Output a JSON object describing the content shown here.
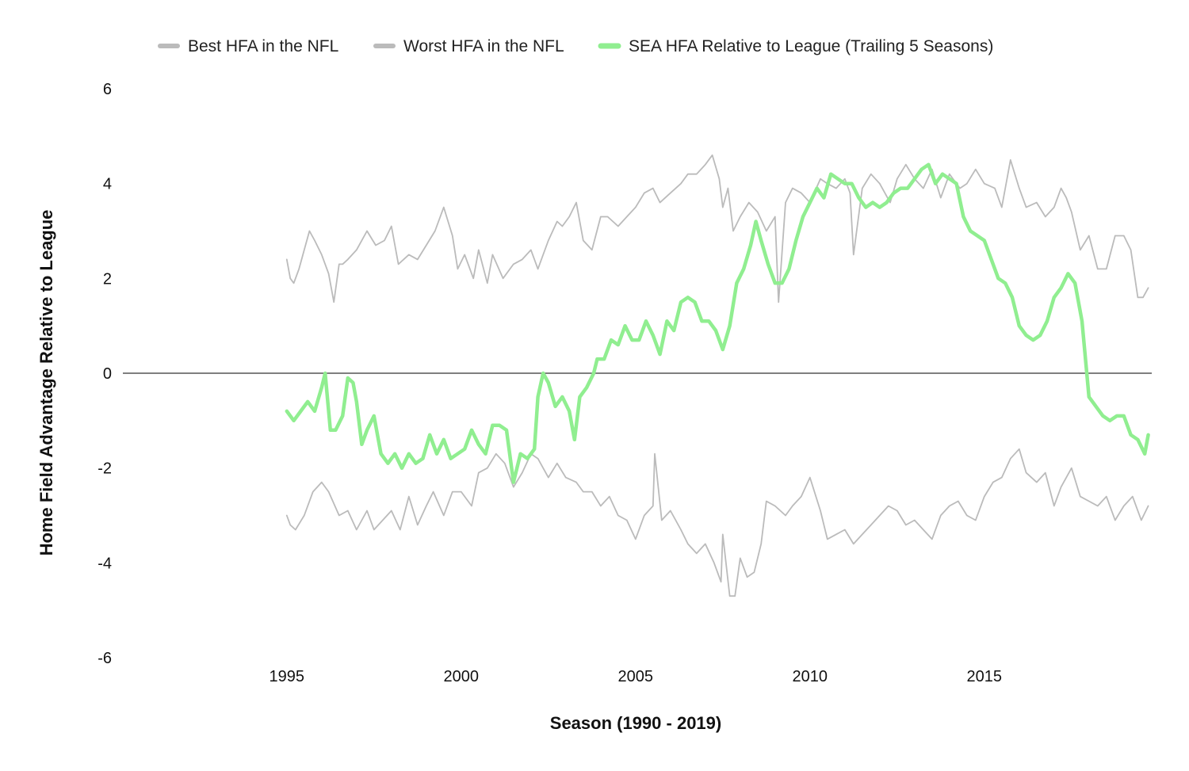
{
  "chart_data": {
    "type": "line",
    "title": "",
    "xlabel": "Season (1990 - 2019)",
    "ylabel": "Home Field Advantage Relative to League",
    "xlim": [
      1990.3,
      2019.8
    ],
    "ylim": [
      -6,
      6
    ],
    "x_ticks": [
      1995,
      2000,
      2005,
      2010,
      2015
    ],
    "y_ticks": [
      6,
      4,
      2,
      0,
      -2,
      -4,
      -6
    ],
    "grid": false,
    "zero_line": true,
    "legend_position": "top",
    "series": [
      {
        "name": "Best HFA in the NFL",
        "color": "#bbbbbb",
        "x": [
          1995.0,
          1995.1,
          1995.2,
          1995.35,
          1995.5,
          1995.65,
          1995.8,
          1996.0,
          1996.2,
          1996.35,
          1996.5,
          1996.6,
          1996.75,
          1997.0,
          1997.3,
          1997.55,
          1997.8,
          1998.0,
          1998.2,
          1998.5,
          1998.75,
          1999.0,
          1999.25,
          1999.5,
          1999.75,
          1999.9,
          2000.1,
          2000.35,
          2000.5,
          2000.75,
          2000.9,
          2001.2,
          2001.5,
          2001.75,
          2002.0,
          2002.2,
          2002.5,
          2002.75,
          2002.9,
          2003.1,
          2003.3,
          2003.5,
          2003.75,
          2004.0,
          2004.2,
          2004.5,
          2004.75,
          2005.0,
          2005.25,
          2005.5,
          2005.7,
          2006.0,
          2006.3,
          2006.5,
          2006.75,
          2007.0,
          2007.2,
          2007.4,
          2007.5,
          2007.65,
          2007.8,
          2008.0,
          2008.25,
          2008.5,
          2008.75,
          2009.0,
          2009.1,
          2009.3,
          2009.5,
          2009.75,
          2010.0,
          2010.3,
          2010.5,
          2010.75,
          2011.0,
          2011.15,
          2011.25,
          2011.5,
          2011.75,
          2012.0,
          2012.3,
          2012.5,
          2012.75,
          2013.0,
          2013.25,
          2013.5,
          2013.75,
          2014.0,
          2014.3,
          2014.5,
          2014.75,
          2015.0,
          2015.3,
          2015.5,
          2015.75,
          2016.0,
          2016.2,
          2016.5,
          2016.75,
          2017.0,
          2017.2,
          2017.35,
          2017.5,
          2017.75,
          2018.0,
          2018.25,
          2018.5,
          2018.75,
          2019.0,
          2019.2,
          2019.4,
          2019.55,
          2019.7
        ],
        "y": [
          2.4,
          2.0,
          1.9,
          2.2,
          2.6,
          3.0,
          2.8,
          2.5,
          2.1,
          1.5,
          2.3,
          2.3,
          2.4,
          2.6,
          3.0,
          2.7,
          2.8,
          3.1,
          2.3,
          2.5,
          2.4,
          2.7,
          3.0,
          3.5,
          2.9,
          2.2,
          2.5,
          2.0,
          2.6,
          1.9,
          2.5,
          2.0,
          2.3,
          2.4,
          2.6,
          2.2,
          2.8,
          3.2,
          3.1,
          3.3,
          3.6,
          2.8,
          2.6,
          3.3,
          3.3,
          3.1,
          3.3,
          3.5,
          3.8,
          3.9,
          3.6,
          3.8,
          4.0,
          4.2,
          4.2,
          4.4,
          4.6,
          4.1,
          3.5,
          3.9,
          3.0,
          3.3,
          3.6,
          3.4,
          3.0,
          3.3,
          1.5,
          3.6,
          3.9,
          3.8,
          3.6,
          4.1,
          4.0,
          3.9,
          4.1,
          3.8,
          2.5,
          3.9,
          4.2,
          4.0,
          3.6,
          4.1,
          4.4,
          4.1,
          3.9,
          4.3,
          3.7,
          4.2,
          3.9,
          4.0,
          4.3,
          4.0,
          3.9,
          3.5,
          4.5,
          3.9,
          3.5,
          3.6,
          3.3,
          3.5,
          3.9,
          3.7,
          3.4,
          2.6,
          2.9,
          2.2,
          2.2,
          2.9,
          2.9,
          2.6,
          1.6,
          1.6,
          1.8
        ]
      },
      {
        "name": "Worst HFA in the NFL",
        "color": "#bbbbbb",
        "x": [
          1995.0,
          1995.1,
          1995.25,
          1995.5,
          1995.75,
          1996.0,
          1996.2,
          1996.5,
          1996.75,
          1997.0,
          1997.3,
          1997.5,
          1997.75,
          1998.0,
          1998.25,
          1998.5,
          1998.75,
          1999.0,
          1999.2,
          1999.5,
          1999.75,
          2000.0,
          2000.3,
          2000.5,
          2000.75,
          2001.0,
          2001.25,
          2001.5,
          2001.75,
          2002.0,
          2002.2,
          2002.5,
          2002.75,
          2003.0,
          2003.3,
          2003.5,
          2003.75,
          2004.0,
          2004.25,
          2004.5,
          2004.75,
          2005.0,
          2005.25,
          2005.5,
          2005.55,
          2005.75,
          2006.0,
          2006.3,
          2006.5,
          2006.75,
          2007.0,
          2007.25,
          2007.45,
          2007.5,
          2007.7,
          2007.85,
          2008.0,
          2008.2,
          2008.4,
          2008.6,
          2008.75,
          2009.0,
          2009.3,
          2009.5,
          2009.75,
          2010.0,
          2010.3,
          2010.5,
          2010.75,
          2011.0,
          2011.25,
          2011.5,
          2011.75,
          2012.0,
          2012.25,
          2012.5,
          2012.75,
          2013.0,
          2013.25,
          2013.5,
          2013.75,
          2014.0,
          2014.25,
          2014.5,
          2014.75,
          2015.0,
          2015.25,
          2015.5,
          2015.75,
          2016.0,
          2016.2,
          2016.5,
          2016.75,
          2017.0,
          2017.2,
          2017.5,
          2017.75,
          2018.0,
          2018.25,
          2018.5,
          2018.75,
          2019.0,
          2019.25,
          2019.5,
          2019.7
        ],
        "y": [
          -3.0,
          -3.2,
          -3.3,
          -3.0,
          -2.5,
          -2.3,
          -2.5,
          -3.0,
          -2.9,
          -3.3,
          -2.9,
          -3.3,
          -3.1,
          -2.9,
          -3.3,
          -2.6,
          -3.2,
          -2.8,
          -2.5,
          -3.0,
          -2.5,
          -2.5,
          -2.8,
          -2.1,
          -2.0,
          -1.7,
          -1.9,
          -2.4,
          -2.1,
          -1.7,
          -1.8,
          -2.2,
          -1.9,
          -2.2,
          -2.3,
          -2.5,
          -2.5,
          -2.8,
          -2.6,
          -3.0,
          -3.1,
          -3.5,
          -3.0,
          -2.8,
          -1.7,
          -3.1,
          -2.9,
          -3.3,
          -3.6,
          -3.8,
          -3.6,
          -4.0,
          -4.4,
          -3.4,
          -4.7,
          -4.7,
          -3.9,
          -4.3,
          -4.2,
          -3.6,
          -2.7,
          -2.8,
          -3.0,
          -2.8,
          -2.6,
          -2.2,
          -2.9,
          -3.5,
          -3.4,
          -3.3,
          -3.6,
          -3.4,
          -3.2,
          -3.0,
          -2.8,
          -2.9,
          -3.2,
          -3.1,
          -3.3,
          -3.5,
          -3.0,
          -2.8,
          -2.7,
          -3.0,
          -3.1,
          -2.6,
          -2.3,
          -2.2,
          -1.8,
          -1.6,
          -2.1,
          -2.3,
          -2.1,
          -2.8,
          -2.4,
          -2.0,
          -2.6,
          -2.7,
          -2.8,
          -2.6,
          -3.1,
          -2.8,
          -2.6,
          -3.1,
          -2.8
        ]
      },
      {
        "name": "SEA HFA Relative to League (Trailing 5 Seasons)",
        "color": "#90ee90",
        "x": [
          1995.0,
          1995.2,
          1995.4,
          1995.6,
          1995.8,
          1996.0,
          1996.1,
          1996.25,
          1996.4,
          1996.6,
          1996.75,
          1996.9,
          1997.0,
          1997.15,
          1997.3,
          1997.5,
          1997.7,
          1997.9,
          1998.1,
          1998.3,
          1998.5,
          1998.7,
          1998.9,
          1999.1,
          1999.3,
          1999.5,
          1999.7,
          1999.9,
          2000.1,
          2000.3,
          2000.5,
          2000.7,
          2000.9,
          2001.1,
          2001.3,
          2001.5,
          2001.7,
          2001.9,
          2002.1,
          2002.2,
          2002.35,
          2002.5,
          2002.7,
          2002.9,
          2003.1,
          2003.25,
          2003.4,
          2003.6,
          2003.8,
          2003.9,
          2004.1,
          2004.3,
          2004.5,
          2004.7,
          2004.9,
          2005.1,
          2005.3,
          2005.5,
          2005.7,
          2005.9,
          2006.1,
          2006.3,
          2006.5,
          2006.7,
          2006.9,
          2007.1,
          2007.3,
          2007.5,
          2007.7,
          2007.9,
          2008.1,
          2008.3,
          2008.45,
          2008.6,
          2008.8,
          2009.0,
          2009.2,
          2009.4,
          2009.6,
          2009.8,
          2010.0,
          2010.2,
          2010.4,
          2010.6,
          2010.8,
          2011.0,
          2011.2,
          2011.4,
          2011.6,
          2011.8,
          2012.0,
          2012.2,
          2012.4,
          2012.6,
          2012.8,
          2013.0,
          2013.2,
          2013.4,
          2013.6,
          2013.8,
          2014.0,
          2014.2,
          2014.4,
          2014.6,
          2014.8,
          2015.0,
          2015.2,
          2015.4,
          2015.6,
          2015.8,
          2016.0,
          2016.2,
          2016.4,
          2016.6,
          2016.8,
          2017.0,
          2017.2,
          2017.4,
          2017.6,
          2017.8,
          2018.0,
          2018.2,
          2018.4,
          2018.6,
          2018.8,
          2019.0,
          2019.2,
          2019.4,
          2019.6,
          2019.7
        ],
        "y": [
          -0.8,
          -1.0,
          -0.8,
          -0.6,
          -0.8,
          -0.3,
          0.0,
          -1.2,
          -1.2,
          -0.9,
          -0.1,
          -0.2,
          -0.6,
          -1.5,
          -1.2,
          -0.9,
          -1.7,
          -1.9,
          -1.7,
          -2.0,
          -1.7,
          -1.9,
          -1.8,
          -1.3,
          -1.7,
          -1.4,
          -1.8,
          -1.7,
          -1.6,
          -1.2,
          -1.5,
          -1.7,
          -1.1,
          -1.1,
          -1.2,
          -2.3,
          -1.7,
          -1.8,
          -1.6,
          -0.5,
          0.0,
          -0.2,
          -0.7,
          -0.5,
          -0.8,
          -1.4,
          -0.5,
          -0.3,
          0.0,
          0.3,
          0.3,
          0.7,
          0.6,
          1.0,
          0.7,
          0.7,
          1.1,
          0.8,
          0.4,
          1.1,
          0.9,
          1.5,
          1.6,
          1.5,
          1.1,
          1.1,
          0.9,
          0.5,
          1.0,
          1.9,
          2.2,
          2.7,
          3.2,
          2.8,
          2.3,
          1.9,
          1.9,
          2.2,
          2.8,
          3.3,
          3.6,
          3.9,
          3.7,
          4.2,
          4.1,
          4.0,
          4.0,
          3.7,
          3.5,
          3.6,
          3.5,
          3.6,
          3.8,
          3.9,
          3.9,
          4.1,
          4.3,
          4.4,
          4.0,
          4.2,
          4.1,
          4.0,
          3.3,
          3.0,
          2.9,
          2.8,
          2.4,
          2.0,
          1.9,
          1.6,
          1.0,
          0.8,
          0.7,
          0.8,
          1.1,
          1.6,
          1.8,
          2.1,
          1.9,
          1.1,
          -0.5,
          -0.7,
          -0.9,
          -1.0,
          -0.9,
          -0.9,
          -1.3,
          -1.4,
          -1.7,
          -1.3
        ]
      }
    ]
  }
}
